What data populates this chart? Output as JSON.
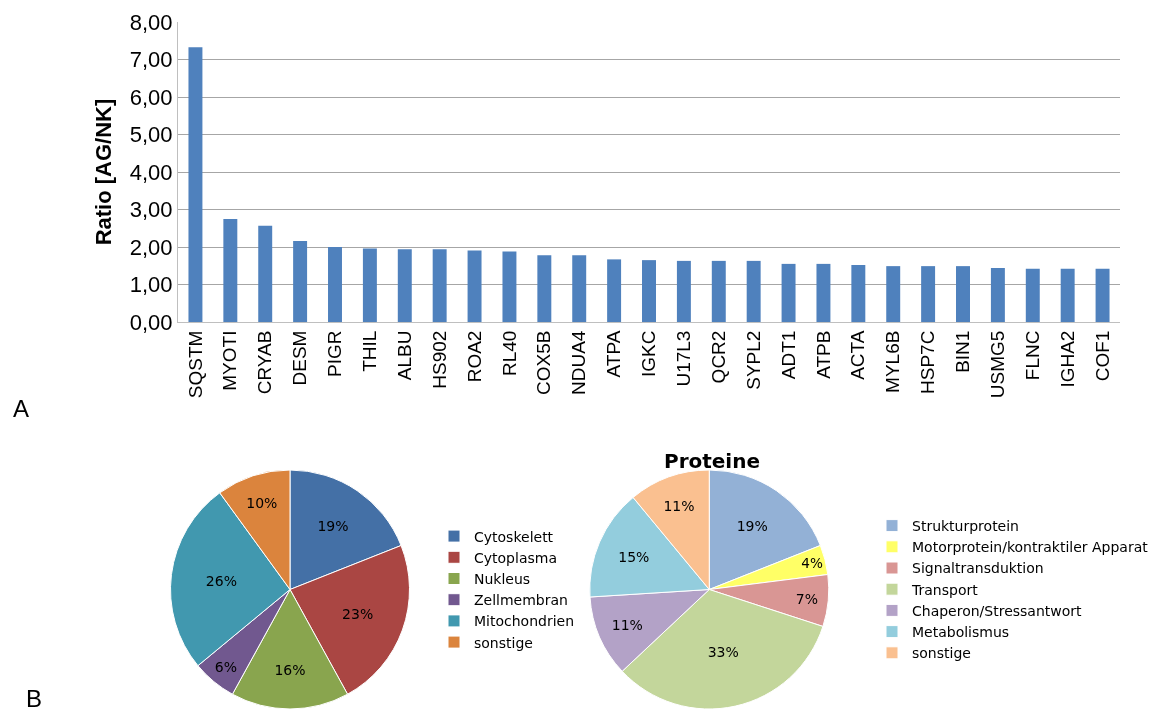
{
  "chart_data": [
    {
      "type": "bar",
      "ylabel": "Ratio [AG/NK]",
      "annotations": [
        "A"
      ],
      "categories": [
        "SQSTM",
        "MYOTI",
        "CRYAB",
        "DESM",
        "PIGR",
        "THIL",
        "ALBU",
        "HS902",
        "ROA2",
        "RL40",
        "COX5B",
        "NDUA4",
        "ATPA",
        "IGKC",
        "U17L3",
        "QCR2",
        "SYPL2",
        "ADT1",
        "ATPB",
        "ACTA",
        "MYL6B",
        "HSP7C",
        "BIN1",
        "USMG5",
        "FLNC",
        "IGHA2",
        "COF1"
      ],
      "values": [
        7.33,
        2.75,
        2.57,
        2.16,
        2.0,
        1.96,
        1.94,
        1.94,
        1.91,
        1.88,
        1.78,
        1.78,
        1.67,
        1.65,
        1.63,
        1.63,
        1.63,
        1.55,
        1.55,
        1.52,
        1.49,
        1.49,
        1.49,
        1.44,
        1.42,
        1.42,
        1.42
      ],
      "color": "#4f81bd",
      "ylim": [
        0,
        8
      ],
      "yticks": [
        {
          "value": 0,
          "label": "0,00"
        },
        {
          "value": 1,
          "label": "1,00"
        },
        {
          "value": 2,
          "label": "2,00"
        },
        {
          "value": 3,
          "label": "3,00"
        },
        {
          "value": 4,
          "label": "4,00"
        },
        {
          "value": 5,
          "label": "5,00"
        },
        {
          "value": 6,
          "label": "6,00"
        },
        {
          "value": 7,
          "label": "7,00"
        },
        {
          "value": 8,
          "label": "8,00"
        }
      ],
      "grid": "y"
    },
    {
      "type": "pie",
      "annotations": [
        "B"
      ],
      "categories": [
        "Cytoskelett",
        "Cytoplasma",
        "Nukleus",
        "Zellmembran",
        "Mitochondrien",
        "sonstige"
      ],
      "values": [
        19,
        23,
        16,
        6,
        26,
        10
      ],
      "value_labels": [
        "19%",
        "23%",
        "16%",
        "6%",
        "26%",
        "10%"
      ],
      "colors": [
        "#4470a6",
        "#aa4643",
        "#89a54e",
        "#71588f",
        "#4198af",
        "#db843d"
      ],
      "legend": "right"
    },
    {
      "type": "pie",
      "title": "Proteine",
      "categories": [
        "Strukturprotein",
        "Motorprotein/kontraktiler Apparat",
        "Signaltransduktion",
        "Transport",
        "Chaperon/Stressantwort",
        "Metabolismus",
        "sonstige"
      ],
      "values": [
        19,
        4,
        7,
        33,
        11,
        15,
        11
      ],
      "value_labels": [
        "19%",
        "4%",
        "7%",
        "33%",
        "11%",
        "15%",
        "11%"
      ],
      "colors": [
        "#93b1d6",
        "#ffff66",
        "#d99694",
        "#c3d69b",
        "#b3a2c7",
        "#93cddd",
        "#fac090"
      ],
      "legend": "right"
    }
  ]
}
